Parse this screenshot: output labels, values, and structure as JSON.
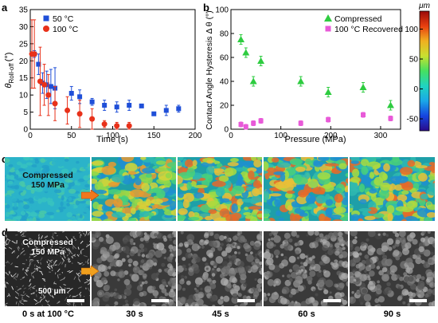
{
  "panel_labels": {
    "a": "a",
    "b": "b",
    "c": "c",
    "d": "d"
  },
  "chart_data": [
    {
      "type": "scatter",
      "panel": "a",
      "xlabel": "Time (s)",
      "ylabel_main": "θ",
      "ylabel_sub": "Roll-off",
      "ylabel_unit": "(°)",
      "xlim": [
        0,
        200
      ],
      "ylim": [
        0,
        35
      ],
      "xticks": [
        0,
        50,
        100,
        150,
        200
      ],
      "yticks": [
        0,
        5,
        10,
        15,
        20,
        25,
        30,
        35
      ],
      "legend_position": "top-right",
      "series": [
        {
          "name": "50 °C",
          "color": "#1f4fd8",
          "marker": "square",
          "points": [
            {
              "x": 5,
              "y": 22,
              "err": 1
            },
            {
              "x": 10,
              "y": 19,
              "err": 3
            },
            {
              "x": 15,
              "y": 13.5,
              "err": 3
            },
            {
              "x": 20,
              "y": 13,
              "err": 4
            },
            {
              "x": 25,
              "y": 12.5,
              "err": 5
            },
            {
              "x": 30,
              "y": 12,
              "err": 6
            },
            {
              "x": 50,
              "y": 10.5,
              "err": 2
            },
            {
              "x": 60,
              "y": 9.5,
              "err": 2
            },
            {
              "x": 75,
              "y": 8,
              "err": 1
            },
            {
              "x": 90,
              "y": 7,
              "err": 1.5
            },
            {
              "x": 105,
              "y": 6.5,
              "err": 1.5
            },
            {
              "x": 120,
              "y": 7,
              "err": 1.5
            },
            {
              "x": 135,
              "y": 6.8,
              "err": 0
            },
            {
              "x": 150,
              "y": 4.5,
              "err": 0.5
            },
            {
              "x": 165,
              "y": 5.5,
              "err": 1.5
            },
            {
              "x": 180,
              "y": 6,
              "err": 1
            }
          ]
        },
        {
          "name": "100 °C",
          "color": "#e8311a",
          "marker": "circle",
          "points": [
            {
              "x": 2,
              "y": 22,
              "err": 10
            },
            {
              "x": 5,
              "y": 22,
              "err": 10
            },
            {
              "x": 12,
              "y": 14,
              "err": 10
            },
            {
              "x": 17,
              "y": 13,
              "err": 6
            },
            {
              "x": 22,
              "y": 10,
              "err": 6
            },
            {
              "x": 30,
              "y": 7.5,
              "err": 5
            },
            {
              "x": 45,
              "y": 5.5,
              "err": 4
            },
            {
              "x": 60,
              "y": 4.5,
              "err": 4
            },
            {
              "x": 75,
              "y": 3,
              "err": 3
            },
            {
              "x": 90,
              "y": 1.5,
              "err": 1
            },
            {
              "x": 105,
              "y": 1,
              "err": 1
            },
            {
              "x": 120,
              "y": 1,
              "err": 1
            }
          ]
        }
      ]
    },
    {
      "type": "scatter",
      "panel": "b",
      "xlabel": "Pressure (MPa)",
      "ylabel": "Contact Angle Hysteresis Δ θ (°)",
      "xlim": [
        0,
        340
      ],
      "ylim": [
        0,
        100
      ],
      "xticks": [
        0,
        100,
        200,
        300
      ],
      "yticks": [
        0,
        20,
        40,
        60,
        80,
        100
      ],
      "legend_position": "top-right",
      "series": [
        {
          "name": "Compressed",
          "color": "#2ecc40",
          "marker": "triangle",
          "points": [
            {
              "x": 20,
              "y": 75,
              "err": 4
            },
            {
              "x": 30,
              "y": 64,
              "err": 4
            },
            {
              "x": 45,
              "y": 40,
              "err": 4
            },
            {
              "x": 60,
              "y": 57,
              "err": 4
            },
            {
              "x": 140,
              "y": 40,
              "err": 4
            },
            {
              "x": 195,
              "y": 31,
              "err": 4
            },
            {
              "x": 265,
              "y": 35,
              "err": 4
            },
            {
              "x": 320,
              "y": 20,
              "err": 4
            }
          ]
        },
        {
          "name": "100 °C Recovered",
          "color": "#e85ad8",
          "marker": "square",
          "points": [
            {
              "x": 20,
              "y": 4,
              "err": 2
            },
            {
              "x": 30,
              "y": 2,
              "err": 2
            },
            {
              "x": 45,
              "y": 5,
              "err": 2
            },
            {
              "x": 60,
              "y": 7,
              "err": 2
            },
            {
              "x": 140,
              "y": 5,
              "err": 2
            },
            {
              "x": 195,
              "y": 8,
              "err": 2
            },
            {
              "x": 265,
              "y": 12,
              "err": 2
            },
            {
              "x": 320,
              "y": 9,
              "err": 2
            }
          ]
        }
      ]
    }
  ],
  "colorbar": {
    "unit": "μm",
    "range": [
      -70,
      130
    ],
    "ticks": [
      -50,
      0,
      50,
      100
    ],
    "colors": [
      "#2a0a8a",
      "#1545e0",
      "#1aa8e8",
      "#20d4c0",
      "#45e060",
      "#c8e030",
      "#f0b020",
      "#e84010",
      "#9a0a0a"
    ]
  },
  "panel_c": {
    "label_line1": "Compressed",
    "label_line2": "150 MPa"
  },
  "panel_d": {
    "label_line1": "Compressed",
    "label_line2": "150 MPa",
    "scale_text": "500 μm"
  },
  "time_labels": [
    "0 s at 100 °C",
    "30 s",
    "45 s",
    "60 s",
    "90 s"
  ]
}
